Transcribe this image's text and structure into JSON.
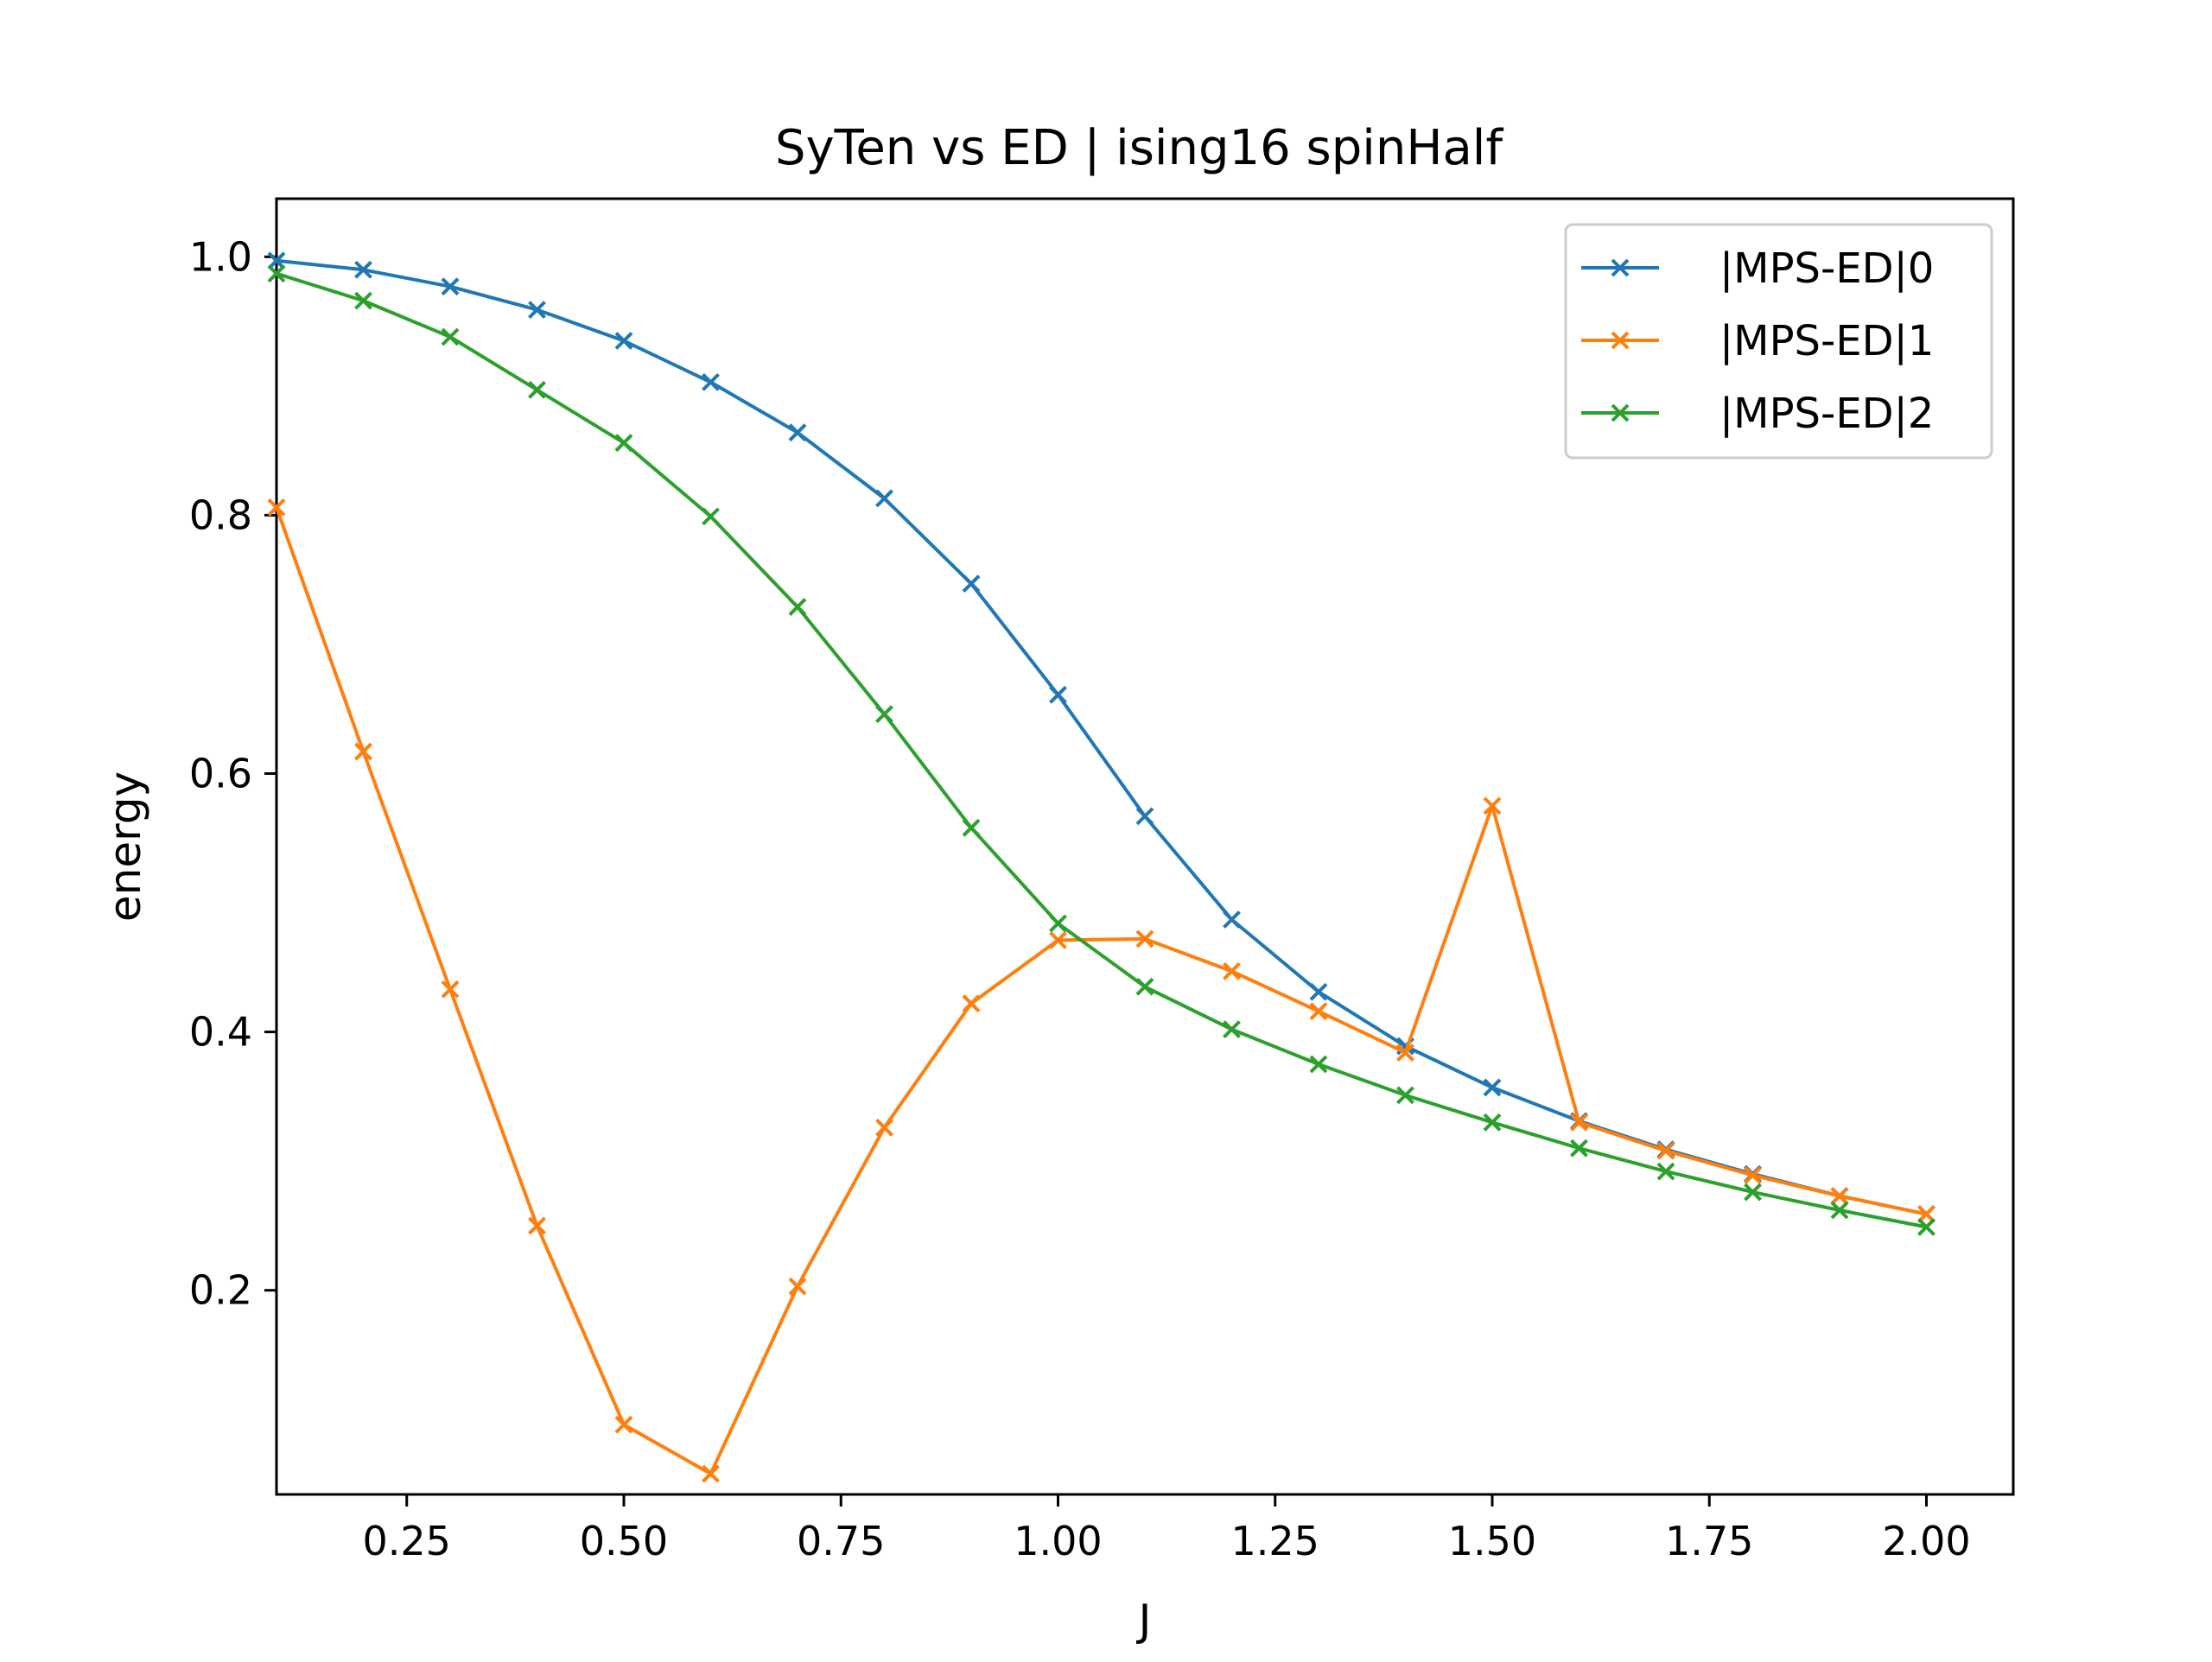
{
  "chart_data": {
    "type": "line",
    "title": "SyTen vs ED | ising16 spinHalf",
    "xlabel": "J",
    "ylabel": "energy",
    "xlim": [
      0.1,
      2.1
    ],
    "ylim": [
      0.042,
      1.045
    ],
    "xticks": [
      0.25,
      0.5,
      0.75,
      1.0,
      1.25,
      1.5,
      1.75,
      2.0
    ],
    "xtick_labels": [
      "0.25",
      "0.50",
      "0.75",
      "1.00",
      "1.25",
      "1.50",
      "1.75",
      "2.00"
    ],
    "yticks": [
      0.2,
      0.4,
      0.6,
      0.8,
      1.0
    ],
    "ytick_labels": [
      "0.2",
      "0.4",
      "0.6",
      "0.8",
      "1.0"
    ],
    "grid": false,
    "legend_position": "top-right",
    "marker": "x",
    "x": [
      0.1,
      0.2,
      0.3,
      0.4,
      0.5,
      0.6,
      0.7,
      0.8,
      0.9,
      1.0,
      1.1,
      1.2,
      1.3,
      1.4,
      1.5,
      1.6,
      1.7,
      1.8,
      1.9,
      2.0
    ],
    "series": [
      {
        "name": "|MPS-ED|0",
        "color": "#1f77b4",
        "values": [
          0.997,
          0.99,
          0.977,
          0.959,
          0.935,
          0.903,
          0.864,
          0.813,
          0.747,
          0.661,
          0.567,
          0.487,
          0.431,
          0.389,
          0.357,
          0.331,
          0.309,
          0.29,
          0.273,
          0.259
        ]
      },
      {
        "name": "|MPS-ED|1",
        "color": "#ff7f0e",
        "values": [
          0.806,
          0.617,
          0.433,
          0.25,
          0.096,
          0.058,
          0.203,
          0.326,
          0.422,
          0.471,
          0.472,
          0.447,
          0.416,
          0.384,
          0.575,
          0.33,
          0.308,
          0.289,
          0.273,
          0.259
        ]
      },
      {
        "name": "|MPS-ED|2",
        "color": "#2ca02c",
        "values": [
          0.987,
          0.966,
          0.938,
          0.897,
          0.856,
          0.799,
          0.729,
          0.646,
          0.558,
          0.484,
          0.435,
          0.402,
          0.375,
          0.351,
          0.33,
          0.31,
          0.292,
          0.276,
          0.262,
          0.249
        ]
      }
    ]
  }
}
